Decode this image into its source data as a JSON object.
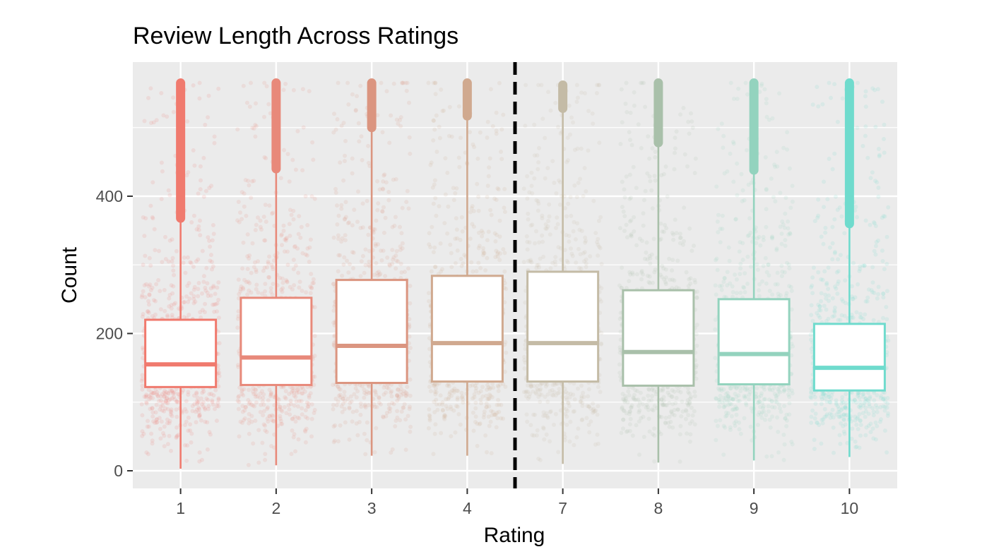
{
  "chart_data": {
    "type": "boxplot",
    "title": "Review Length Across Ratings",
    "xlabel": "Rating",
    "ylabel": "Count",
    "categories": [
      "1",
      "2",
      "3",
      "4",
      "7",
      "8",
      "9",
      "10"
    ],
    "ylim": [
      -25,
      600
    ],
    "yticks": [
      0,
      200,
      400
    ],
    "grid": true,
    "jittered_points": true,
    "divider_between": [
      "4",
      "7"
    ],
    "colors": [
      "#F07A6E",
      "#E8897A",
      "#DB9580",
      "#D0A98F",
      "#C4BBA6",
      "#A9C0AA",
      "#93D3BE",
      "#6FDBCD"
    ],
    "series": [
      {
        "category": "1",
        "whisker_low": 3,
        "q1": 122,
        "median": 155,
        "q3": 220,
        "whisker_high": 368,
        "outlier_min": 368,
        "outlier_max": 565
      },
      {
        "category": "2",
        "whisker_low": 8,
        "q1": 125,
        "median": 165,
        "q3": 252,
        "whisker_high": 440,
        "outlier_min": 440,
        "outlier_max": 565
      },
      {
        "category": "3",
        "whisker_low": 22,
        "q1": 128,
        "median": 182,
        "q3": 278,
        "whisker_high": 500,
        "outlier_min": 500,
        "outlier_max": 565
      },
      {
        "category": "4",
        "whisker_low": 22,
        "q1": 130,
        "median": 186,
        "q3": 284,
        "whisker_high": 517,
        "outlier_min": 517,
        "outlier_max": 565
      },
      {
        "category": "7",
        "whisker_low": 10,
        "q1": 130,
        "median": 186,
        "q3": 290,
        "whisker_high": 528,
        "outlier_min": 528,
        "outlier_max": 562
      },
      {
        "category": "8",
        "whisker_low": 12,
        "q1": 124,
        "median": 173,
        "q3": 263,
        "whisker_high": 478,
        "outlier_min": 478,
        "outlier_max": 565
      },
      {
        "category": "9",
        "whisker_low": 15,
        "q1": 126,
        "median": 170,
        "q3": 250,
        "whisker_high": 438,
        "outlier_min": 438,
        "outlier_max": 565
      },
      {
        "category": "10",
        "whisker_low": 20,
        "q1": 117,
        "median": 150,
        "q3": 214,
        "whisker_high": 360,
        "outlier_min": 360,
        "outlier_max": 565
      }
    ]
  }
}
